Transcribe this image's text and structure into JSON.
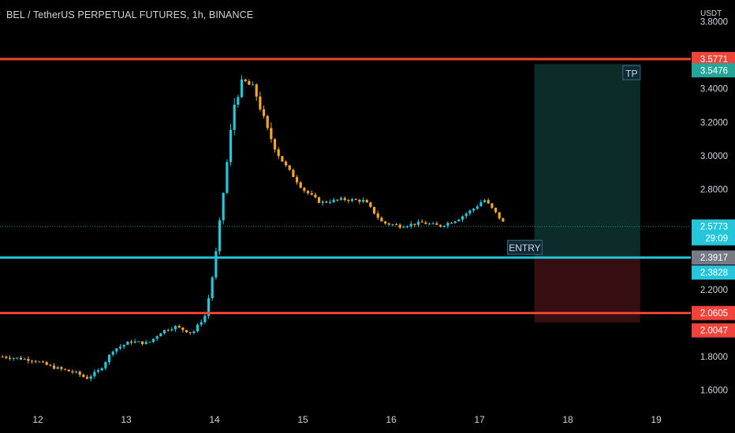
{
  "header": {
    "title": "BEL / TetherUS PERPETUAL FUTURES, 1h, BINANCE",
    "unit": "USDT"
  },
  "colors": {
    "background": "#000000",
    "up": "#26c6da",
    "down": "#f5a623",
    "resistance": "#f0443a",
    "entry": "#26c6da",
    "profit_zone": "#0c2e2a",
    "loss_zone": "#3a0f12"
  },
  "chart_data": {
    "type": "candlestick",
    "ylim": [
      1.5,
      3.85
    ],
    "xlim": [
      11.6,
      19.3
    ],
    "y_ticks": [
      "1.6000",
      "1.8000",
      "2.2000",
      "2.8000",
      "3.0000",
      "3.2000",
      "3.4000",
      "3.8000"
    ],
    "x_ticks": [
      "12",
      "13",
      "14",
      "15",
      "16",
      "17",
      "18",
      "19"
    ],
    "horizontal_lines": [
      {
        "name": "resistance-top",
        "value": 3.5771,
        "color": "#f0443a"
      },
      {
        "name": "entry",
        "value": 2.3917,
        "color": "#26c6da"
      },
      {
        "name": "resistance-bottom",
        "value": 2.0605,
        "color": "#f0443a"
      }
    ],
    "last_price": 2.5773,
    "countdown": "29:09",
    "price_tags": [
      {
        "value": "3.5771",
        "color": "#f0443a"
      },
      {
        "value": "3.5476",
        "color": "#26a69a"
      },
      {
        "value": "2.5773",
        "color": "#26c6da"
      },
      {
        "value": "29:09",
        "color": "#26c6da"
      },
      {
        "value": "2.3917",
        "color": "#787b86"
      },
      {
        "value": "2.3828",
        "color": "#26c6da"
      },
      {
        "value": "2.0605",
        "color": "#f0443a"
      },
      {
        "value": "2.0047",
        "color": "#f0443a"
      }
    ],
    "position": {
      "x_start": 17.62,
      "x_end": 18.82,
      "entry": 2.3917,
      "take_profit": 3.5476,
      "stop": 2.0047,
      "tp_label": "TP",
      "entry_label": "ENTRY"
    },
    "anchors": [
      [
        11.6,
        1.8
      ],
      [
        11.95,
        1.78
      ],
      [
        12.15,
        1.74
      ],
      [
        12.45,
        1.7
      ],
      [
        12.55,
        1.67
      ],
      [
        12.7,
        1.72
      ],
      [
        12.85,
        1.84
      ],
      [
        13.05,
        1.89
      ],
      [
        13.25,
        1.88
      ],
      [
        13.4,
        1.95
      ],
      [
        13.55,
        1.98
      ],
      [
        13.75,
        1.94
      ],
      [
        13.9,
        2.05
      ],
      [
        14.0,
        2.35
      ],
      [
        14.1,
        2.78
      ],
      [
        14.22,
        3.3
      ],
      [
        14.32,
        3.45
      ],
      [
        14.45,
        3.4
      ],
      [
        14.6,
        3.15
      ],
      [
        14.75,
        2.98
      ],
      [
        15.0,
        2.8
      ],
      [
        15.2,
        2.72
      ],
      [
        15.45,
        2.74
      ],
      [
        15.7,
        2.73
      ],
      [
        15.9,
        2.6
      ],
      [
        16.1,
        2.58
      ],
      [
        16.35,
        2.6
      ],
      [
        16.55,
        2.58
      ],
      [
        16.75,
        2.62
      ],
      [
        16.95,
        2.69
      ],
      [
        17.05,
        2.74
      ],
      [
        17.15,
        2.68
      ],
      [
        17.3,
        2.58
      ]
    ]
  }
}
